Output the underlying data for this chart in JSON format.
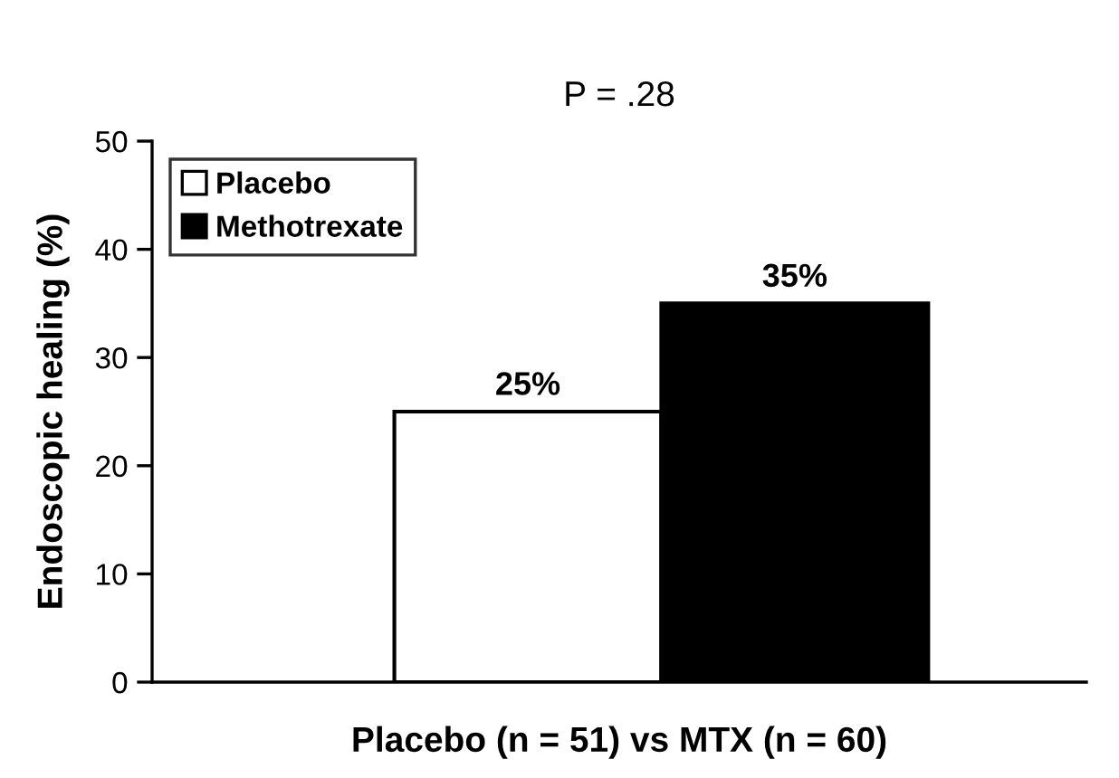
{
  "chart_data": {
    "type": "bar",
    "title": "P = .28",
    "xlabel": "Placebo (n = 51) vs MTX (n = 60)",
    "ylabel": "Endoscopic healing (%)",
    "categories": [
      null
    ],
    "series": [
      {
        "name": "Placebo",
        "color": "#ffffff",
        "values": [
          25
        ],
        "value_labels": [
          "25%"
        ]
      },
      {
        "name": "Methotrexate",
        "color": "#000000",
        "values": [
          35
        ],
        "value_labels": [
          "35%"
        ]
      }
    ],
    "ylim": [
      0,
      50
    ],
    "yticks": [
      0,
      10,
      20,
      30,
      40,
      50
    ],
    "grid": false,
    "legend": "top left"
  }
}
